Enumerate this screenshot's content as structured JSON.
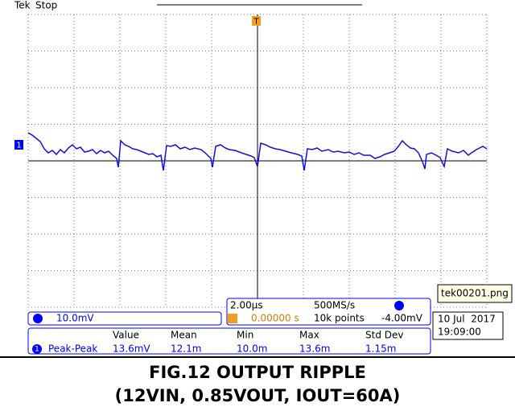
{
  "scope": {
    "brand": "Tek",
    "status": "Stop",
    "trigger_marker": "T",
    "channel_marker": "1",
    "channel_scale": "10.0mV",
    "timebase": "2.00µs",
    "trigger_position": "0.00000 s",
    "sample_rate": "500MS/s",
    "record_length": "10k points",
    "trigger_level": "-4.00mV",
    "file_tooltip": "tek00201.png",
    "date": "10 Jul  2017",
    "time": "19:09:00"
  },
  "measurements": {
    "headers": [
      "Value",
      "Mean",
      "Min",
      "Max",
      "Std Dev"
    ],
    "rows": [
      {
        "channel": "1",
        "label": "Peak-Peak",
        "values": [
          "13.6mV",
          "12.1m",
          "10.0m",
          "13.6m",
          "1.15m"
        ]
      }
    ]
  },
  "caption": {
    "line1": "FIG.12 OUTPUT RIPPLE",
    "line2": "(12VIN, 0.85VOUT, IOUT=60A)"
  }
}
